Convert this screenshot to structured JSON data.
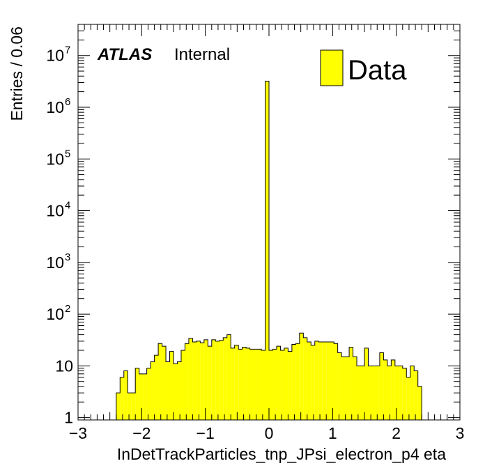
{
  "chart_data": {
    "type": "bar",
    "xlabel": "InDetTrackParticles_tnp_JPsi_electron_p4 eta",
    "ylabel": "Entries / 0.06",
    "xlim": [
      -3,
      3
    ],
    "ylim": [
      0.9,
      40000000
    ],
    "y_scale": "log",
    "bin_width": 0.06,
    "x_ticks": [
      -3,
      -2,
      -1,
      0,
      1,
      2,
      3
    ],
    "x_tick_labels": [
      "−3",
      "−2",
      "−1",
      "0",
      "1",
      "2",
      "3"
    ],
    "y_tick_labels": [
      {
        "base": "1",
        "exp": ""
      },
      {
        "base": "10",
        "exp": ""
      },
      {
        "base": "10",
        "exp": "2"
      },
      {
        "base": "10",
        "exp": "3"
      },
      {
        "base": "10",
        "exp": "4"
      },
      {
        "base": "10",
        "exp": "5"
      },
      {
        "base": "10",
        "exp": "6"
      },
      {
        "base": "10",
        "exp": "7"
      }
    ],
    "series": [
      {
        "name": "Data",
        "color": "#ffff00",
        "bin_low_edges": [
          -2.4,
          -2.34,
          -2.28,
          -2.22,
          -2.16,
          -2.1,
          -2.04,
          -1.98,
          -1.92,
          -1.86,
          -1.8,
          -1.74,
          -1.68,
          -1.62,
          -1.56,
          -1.5,
          -1.44,
          -1.38,
          -1.32,
          -1.26,
          -1.2,
          -1.14,
          -1.08,
          -1.02,
          -0.96,
          -0.9,
          -0.84,
          -0.78,
          -0.72,
          -0.66,
          -0.6,
          -0.54,
          -0.48,
          -0.42,
          -0.36,
          -0.3,
          -0.24,
          -0.18,
          -0.12,
          -0.06,
          0.0,
          0.06,
          0.12,
          0.18,
          0.24,
          0.3,
          0.36,
          0.42,
          0.48,
          0.54,
          0.6,
          0.66,
          0.72,
          0.78,
          0.84,
          0.9,
          0.96,
          1.02,
          1.08,
          1.14,
          1.2,
          1.26,
          1.32,
          1.38,
          1.44,
          1.5,
          1.56,
          1.62,
          1.68,
          1.74,
          1.8,
          1.86,
          1.92,
          1.98,
          2.04,
          2.1,
          2.16,
          2.22,
          2.28,
          2.34
        ],
        "values": [
          3,
          6,
          8,
          3,
          3,
          9,
          7,
          7,
          9,
          12,
          16,
          27,
          24,
          12,
          19,
          11,
          12,
          20,
          27,
          34,
          29,
          30,
          28,
          32,
          24,
          32,
          30,
          31,
          35,
          40,
          22,
          25,
          21,
          23,
          22,
          21,
          21,
          21,
          20,
          3200000,
          20,
          21,
          24,
          20,
          22,
          19,
          26,
          27,
          43,
          35,
          29,
          25,
          30,
          29,
          29,
          29,
          29,
          27,
          18,
          15,
          15,
          23,
          15,
          10,
          10,
          22,
          10,
          10,
          10,
          18,
          13,
          10,
          13,
          10,
          10,
          9,
          6,
          10,
          8,
          4
        ]
      }
    ],
    "legend": {
      "entries": [
        "Data"
      ],
      "placement": "top-right"
    },
    "annotation": {
      "bold_text": "ATLAS",
      "text": "Internal"
    }
  }
}
